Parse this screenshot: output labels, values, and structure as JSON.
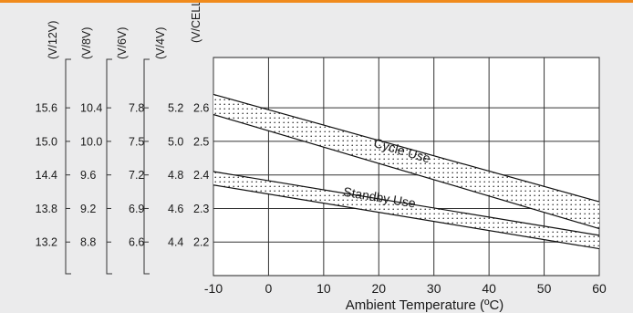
{
  "page": {
    "accent_color": "#f08a1c",
    "background_color": "#ebebec"
  },
  "chart_data": {
    "type": "line",
    "title": "",
    "xlabel": "Ambient Temperature (ºC)",
    "ylabel": "(V/CELL)",
    "xlim": [
      -10,
      60
    ],
    "ylim": [
      2.1,
      2.75
    ],
    "x_ticks": [
      "-10",
      "0",
      "10",
      "20",
      "30",
      "40",
      "50",
      "60"
    ],
    "y_ticks": [
      {
        "value": 2.6,
        "label": "2.6"
      },
      {
        "value": 2.5,
        "label": "2.5"
      },
      {
        "value": 2.4,
        "label": "2.4"
      },
      {
        "value": 2.3,
        "label": "2.3"
      },
      {
        "value": 2.2,
        "label": "2.2"
      }
    ],
    "grid": true,
    "extra_axes": [
      {
        "unit": "(V/12V)",
        "labels": [
          "15.6",
          "15.0",
          "14.4",
          "13.8",
          "13.2"
        ]
      },
      {
        "unit": "(V/8V)",
        "labels": [
          "10.4",
          "10.0",
          "9.6",
          "9.2",
          "8.8"
        ]
      },
      {
        "unit": "(V/6V)",
        "labels": [
          "7.8",
          "7.5",
          "7.2",
          "6.9",
          "6.6"
        ]
      },
      {
        "unit": "(V/4V)",
        "labels": [
          "5.2",
          "5.0",
          "4.8",
          "4.6",
          "4.4"
        ]
      }
    ],
    "series": [
      {
        "name": "Cycle Use",
        "x": [
          -10,
          60
        ],
        "upper": [
          2.64,
          2.32
        ],
        "lower": [
          2.58,
          2.24
        ],
        "label_x": 24,
        "label_y": 2.46
      },
      {
        "name": "Standby Use",
        "x": [
          -10,
          60
        ],
        "upper": [
          2.41,
          2.22
        ],
        "lower": [
          2.37,
          2.18
        ],
        "label_x": 20,
        "label_y": 2.32
      }
    ]
  }
}
